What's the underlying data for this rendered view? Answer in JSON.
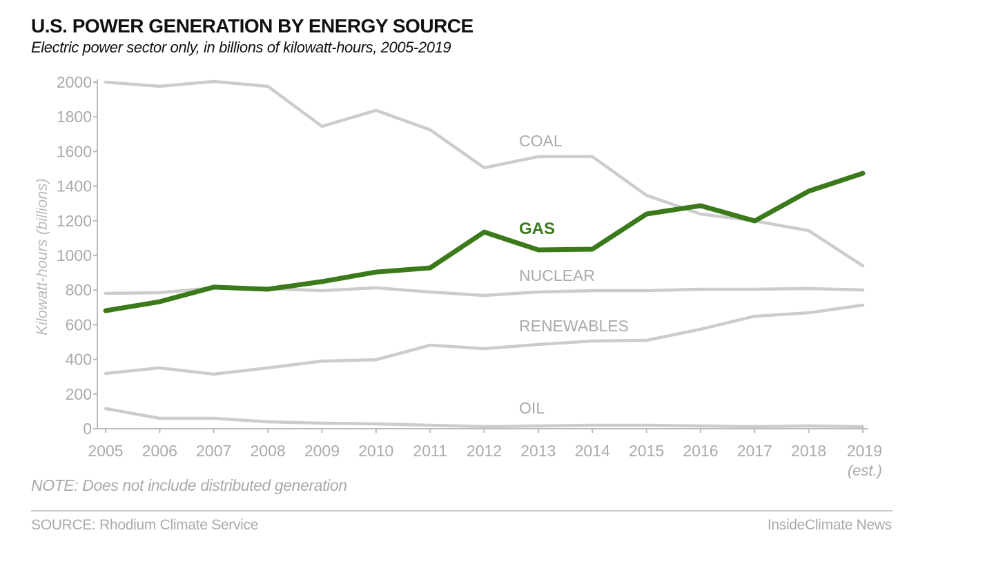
{
  "chart_data": {
    "type": "line",
    "title": "U.S. POWER GENERATION BY ENERGY SOURCE",
    "subtitle": "Electric power sector only, in billions of kilowatt-hours, 2005-2019",
    "xlabel": "",
    "ylabel": "Kilowatt-hours (billions)",
    "ylim": [
      0,
      2000
    ],
    "yticks": [
      "0",
      "200",
      "400",
      "600",
      "800",
      "1000",
      "1200",
      "1400",
      "1600",
      "1800",
      "2000"
    ],
    "x": [
      "2005",
      "2006",
      "2007",
      "2008",
      "2009",
      "2010",
      "2011",
      "2012",
      "2013",
      "2014",
      "2015",
      "2016",
      "2017",
      "2018",
      "2019"
    ],
    "x_last_sublabel": "(est.)",
    "grid": false,
    "series": [
      {
        "name": "COAL",
        "color": "#cccccc",
        "values": [
          2000,
          1976,
          2004,
          1976,
          1745,
          1837,
          1725,
          1506,
          1570,
          1570,
          1347,
          1239,
          1199,
          1143,
          940
        ]
      },
      {
        "name": "NUCLEAR",
        "color": "#cccccc",
        "values": [
          781,
          785,
          813,
          809,
          797,
          813,
          789,
          769,
          789,
          797,
          797,
          805,
          805,
          809,
          801
        ]
      },
      {
        "name": "RENEWABLES",
        "color": "#cccccc",
        "values": [
          319,
          351,
          315,
          351,
          390,
          398,
          482,
          462,
          486,
          506,
          510,
          574,
          649,
          669,
          713
        ]
      },
      {
        "name": "OIL",
        "color": "#cccccc",
        "values": [
          116,
          60,
          60,
          40,
          32,
          28,
          20,
          12,
          16,
          20,
          20,
          16,
          12,
          16,
          12
        ]
      },
      {
        "name": "GAS",
        "color": "#3a7a1a",
        "values": [
          681,
          733,
          817,
          805,
          849,
          904,
          928,
          1135,
          1032,
          1036,
          1239,
          1287,
          1199,
          1371,
          1474
        ]
      }
    ],
    "note": "NOTE: Does not include distributed generation",
    "source": "SOURCE: Rhodium Climate Service",
    "publisher": "InsideClimate News"
  }
}
